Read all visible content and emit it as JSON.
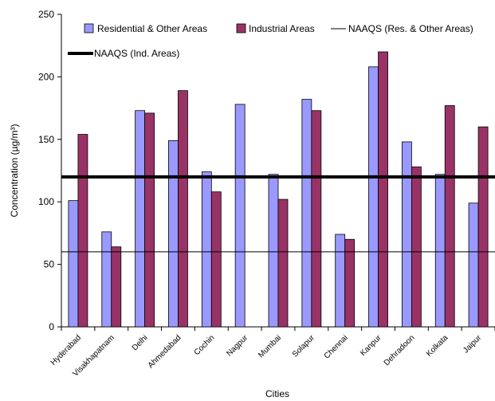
{
  "chart_data": {
    "type": "bar",
    "title": "",
    "xlabel": "Cities",
    "ylabel": "Concentration (µg/m³)",
    "ylim": [
      0,
      250
    ],
    "yticks": [
      0,
      50,
      100,
      150,
      200,
      250
    ],
    "grid": false,
    "legend_position": "top",
    "categories": [
      "Hyderabad",
      "Visakhapatnam",
      "Delhi",
      "Ahmedabad",
      "Cochin",
      "Nagpur",
      "Mumbai",
      "Solapur",
      "Chennai",
      "Kanpur",
      "Dehradoon",
      "Kolkata",
      "Jaipur"
    ],
    "series": [
      {
        "name": "Residential & Other Areas",
        "color": "#9999ff",
        "values": [
          101,
          76,
          173,
          149,
          124,
          178,
          122,
          182,
          74,
          208,
          148,
          122,
          99
        ]
      },
      {
        "name": "Industrial Areas",
        "color": "#993366",
        "values": [
          154,
          64,
          171,
          189,
          108,
          null,
          102,
          173,
          70,
          220,
          128,
          177,
          160
        ]
      }
    ],
    "reference_lines": [
      {
        "name": "NAAQS (Res. & Other Areas)",
        "value": 60,
        "color": "#000000",
        "weight": "thin"
      },
      {
        "name": "NAAQS (Ind. Areas)",
        "value": 120,
        "color": "#000000",
        "weight": "thick"
      }
    ]
  }
}
